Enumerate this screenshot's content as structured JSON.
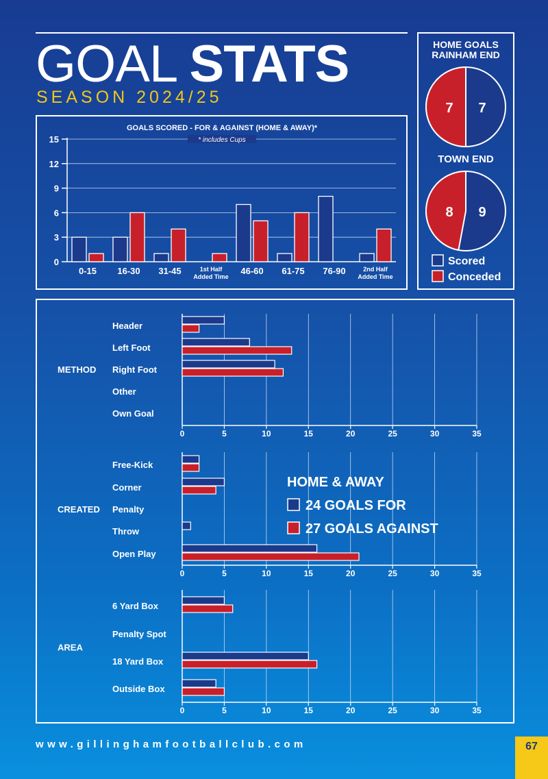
{
  "header": {
    "title_light": "GOAL",
    "title_bold": "STATS",
    "season": "SEASON 2024/25"
  },
  "colors": {
    "for": "#1b3a8c",
    "against": "#c8202a",
    "accent": "#f2c71a"
  },
  "chart_data": [
    {
      "type": "bar",
      "title": "GOALS SCORED - FOR & AGAINST (HOME & AWAY)*",
      "subtitle": "* includes Cups",
      "categories": [
        "0-15",
        "16-30",
        "31-45",
        "1st Half Added Time",
        "46-60",
        "61-75",
        "76-90",
        "2nd Half Added Time"
      ],
      "series": [
        {
          "name": "Scored",
          "values": [
            3,
            3,
            1,
            0,
            7,
            1,
            8,
            1
          ]
        },
        {
          "name": "Conceded",
          "values": [
            1,
            6,
            4,
            1,
            5,
            6,
            0,
            4
          ]
        }
      ],
      "yticks": [
        0,
        3,
        6,
        9,
        12,
        15
      ],
      "ylim": [
        0,
        15
      ],
      "grid": true
    },
    {
      "type": "pie",
      "title": "HOME GOALS RAINHAM END",
      "labels": [
        "Scored",
        "Conceded"
      ],
      "values": [
        7,
        7
      ]
    },
    {
      "type": "pie",
      "title": "TOWN END",
      "labels": [
        "Scored",
        "Conceded"
      ],
      "values": [
        9,
        8
      ]
    },
    {
      "type": "bar",
      "orientation": "horizontal",
      "group": "METHOD",
      "categories": [
        "Header",
        "Left Foot",
        "Right Foot",
        "Other",
        "Own Goal"
      ],
      "series": [
        {
          "name": "24 GOALS FOR",
          "values": [
            5,
            8,
            11,
            0,
            0
          ]
        },
        {
          "name": "27 GOALS AGAINST",
          "values": [
            2,
            13,
            12,
            0,
            0
          ]
        }
      ],
      "xticks": [
        0,
        5,
        10,
        15,
        20,
        25,
        30,
        35
      ],
      "xlim": [
        0,
        35
      ]
    },
    {
      "type": "bar",
      "orientation": "horizontal",
      "group": "CREATED",
      "categories": [
        "Free-Kick",
        "Corner",
        "Penalty",
        "Throw",
        "Open Play"
      ],
      "series": [
        {
          "name": "24 GOALS FOR",
          "values": [
            2,
            5,
            0,
            1,
            16
          ]
        },
        {
          "name": "27 GOALS AGAINST",
          "values": [
            2,
            4,
            0,
            0,
            21
          ]
        }
      ],
      "xticks": [
        0,
        5,
        10,
        15,
        20,
        25,
        30,
        35
      ],
      "xlim": [
        0,
        35
      ]
    },
    {
      "type": "bar",
      "orientation": "horizontal",
      "group": "AREA",
      "categories": [
        "6 Yard Box",
        "Penalty Spot",
        "18 Yard Box",
        "Outside Box"
      ],
      "series": [
        {
          "name": "24 GOALS FOR",
          "values": [
            5,
            0,
            15,
            4
          ]
        },
        {
          "name": "27 GOALS AGAINST",
          "values": [
            6,
            0,
            16,
            5
          ]
        }
      ],
      "xticks": [
        0,
        5,
        10,
        15,
        20,
        25,
        30,
        35
      ],
      "xlim": [
        0,
        35
      ]
    }
  ],
  "pie_legend": [
    "Scored",
    "Conceded"
  ],
  "bottom_legend": {
    "title": "HOME & AWAY",
    "items": [
      "24 GOALS FOR",
      "27 GOALS AGAINST"
    ]
  },
  "footer": {
    "website": "www.gillinghamfootballclub.com",
    "page_number": "67"
  }
}
